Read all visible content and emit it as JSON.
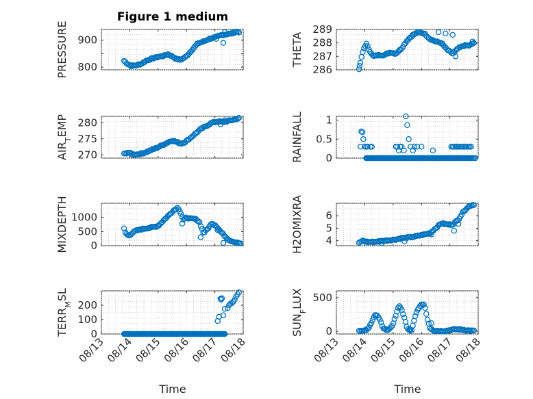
{
  "figure": {
    "title": "Figure 1 medium",
    "xlabel": "Time",
    "x_tick_labels": [
      "08/13",
      "08/14",
      "08/15",
      "08/16",
      "08/17",
      "08/18"
    ]
  },
  "chart_data": [
    {
      "type": "scatter",
      "ylabel": "PRESSURE",
      "title": "Figure 1 medium",
      "xlim": [
        0,
        5
      ],
      "ylim": [
        790,
        940
      ],
      "y_ticks": [
        800,
        850,
        900
      ],
      "y_tick_labels": [
        "800",
        "",
        "900"
      ],
      "anchors": [
        [
          0.8,
          823
        ],
        [
          0.95,
          810
        ],
        [
          1.05,
          805
        ],
        [
          1.2,
          806
        ],
        [
          1.4,
          812
        ],
        [
          1.6,
          825
        ],
        [
          1.8,
          832
        ],
        [
          2.0,
          838
        ],
        [
          2.2,
          842
        ],
        [
          2.35,
          848
        ],
        [
          2.5,
          840
        ],
        [
          2.65,
          830
        ],
        [
          2.8,
          827
        ],
        [
          3.0,
          840
        ],
        [
          3.2,
          865
        ],
        [
          3.4,
          888
        ],
        [
          3.6,
          895
        ],
        [
          3.8,
          905
        ],
        [
          4.0,
          910
        ],
        [
          4.2,
          918
        ],
        [
          4.4,
          922
        ],
        [
          4.6,
          925
        ],
        [
          4.75,
          932
        ],
        [
          4.85,
          930
        ]
      ],
      "outliers": [
        [
          4.3,
          890
        ],
        [
          4.35,
          930
        ],
        [
          4.05,
          905
        ]
      ],
      "n": 95
    },
    {
      "type": "scatter",
      "ylabel": "THETA",
      "xlim": [
        0,
        5
      ],
      "ylim": [
        286,
        289
      ],
      "y_ticks": [
        286,
        287,
        288,
        289
      ],
      "y_tick_labels": [
        "286",
        "287",
        "288",
        "289"
      ],
      "anchors": [
        [
          0.8,
          286.0
        ],
        [
          0.85,
          286.6
        ],
        [
          0.95,
          287.5
        ],
        [
          1.05,
          287.95
        ],
        [
          1.15,
          287.5
        ],
        [
          1.3,
          287.0
        ],
        [
          1.5,
          287.1
        ],
        [
          1.7,
          287.1
        ],
        [
          1.9,
          287.3
        ],
        [
          2.1,
          287.2
        ],
        [
          2.3,
          287.6
        ],
        [
          2.5,
          288.2
        ],
        [
          2.7,
          288.6
        ],
        [
          2.9,
          288.8
        ],
        [
          3.1,
          288.7
        ],
        [
          3.3,
          288.3
        ],
        [
          3.5,
          288.1
        ],
        [
          3.7,
          288.0
        ],
        [
          3.9,
          287.5
        ],
        [
          4.1,
          287.2
        ],
        [
          4.3,
          287.6
        ],
        [
          4.5,
          287.8
        ],
        [
          4.7,
          287.8
        ],
        [
          4.85,
          288.0
        ]
      ],
      "outliers": [
        [
          0.82,
          286.3
        ],
        [
          3.6,
          288.8
        ],
        [
          3.85,
          288.7
        ],
        [
          4.1,
          288.6
        ],
        [
          4.2,
          287.0
        ],
        [
          4.8,
          288.1
        ]
      ],
      "n": 95
    },
    {
      "type": "scatter",
      "ylabel": "AIR_TEMP",
      "ylabel_main": "AIR",
      "ylabel_sub": "T",
      "ylabel_rest": "EMP",
      "xlim": [
        0,
        5
      ],
      "ylim": [
        269,
        282
      ],
      "y_ticks": [
        270,
        275,
        280
      ],
      "y_tick_labels": [
        "270",
        "275",
        "280"
      ],
      "anchors": [
        [
          0.8,
          270.3
        ],
        [
          0.95,
          270.8
        ],
        [
          1.1,
          270.1
        ],
        [
          1.3,
          270.2
        ],
        [
          1.5,
          270.6
        ],
        [
          1.7,
          271.3
        ],
        [
          1.9,
          272.0
        ],
        [
          2.1,
          272.8
        ],
        [
          2.3,
          273.7
        ],
        [
          2.5,
          274.5
        ],
        [
          2.65,
          274.0
        ],
        [
          2.8,
          273.5
        ],
        [
          2.95,
          274.0
        ],
        [
          3.1,
          275.0
        ],
        [
          3.3,
          276.5
        ],
        [
          3.5,
          278.0
        ],
        [
          3.7,
          279.0
        ],
        [
          3.9,
          280.0
        ],
        [
          4.1,
          280.4
        ],
        [
          4.3,
          280.2
        ],
        [
          4.5,
          280.6
        ],
        [
          4.7,
          281.0
        ],
        [
          4.85,
          281.4
        ]
      ],
      "outliers": [
        [
          4.2,
          279.5
        ],
        [
          4.35,
          280.8
        ]
      ],
      "n": 95
    },
    {
      "type": "scatter",
      "ylabel": "RAINFALL",
      "xlim": [
        0,
        5
      ],
      "ylim": [
        0,
        1.1
      ],
      "y_ticks": [
        0,
        0.5,
        1
      ],
      "y_tick_labels": [
        "0",
        "0.5",
        "1"
      ],
      "rain_points": [
        [
          0.88,
          0.7
        ],
        [
          0.92,
          0.68
        ],
        [
          0.95,
          0.5
        ],
        [
          0.85,
          0.3
        ],
        [
          1.0,
          0.3
        ],
        [
          1.05,
          0.3
        ],
        [
          1.1,
          0.3
        ],
        [
          1.2,
          0.3
        ],
        [
          1.25,
          0.3
        ],
        [
          2.1,
          0.3
        ],
        [
          2.15,
          0.3
        ],
        [
          2.2,
          0.2
        ],
        [
          2.25,
          0.3
        ],
        [
          2.3,
          0.3
        ],
        [
          2.38,
          0.2
        ],
        [
          2.45,
          1.1
        ],
        [
          2.5,
          0.87
        ],
        [
          2.55,
          0.5
        ],
        [
          2.62,
          0.3
        ],
        [
          2.7,
          0.2
        ],
        [
          2.75,
          0.3
        ],
        [
          2.85,
          0.3
        ],
        [
          2.9,
          0.0
        ],
        [
          3.0,
          0.3
        ],
        [
          3.05,
          0.0
        ],
        [
          3.4,
          0.2
        ],
        [
          4.05,
          0.3
        ],
        [
          4.1,
          0.3
        ],
        [
          4.15,
          0.3
        ],
        [
          4.2,
          0.3
        ],
        [
          4.25,
          0.3
        ],
        [
          4.3,
          0.3
        ],
        [
          4.35,
          0.3
        ],
        [
          4.4,
          0.3
        ],
        [
          4.45,
          0.3
        ],
        [
          4.5,
          0.3
        ],
        [
          4.55,
          0.3
        ],
        [
          4.6,
          0.3
        ],
        [
          4.65,
          0.3
        ],
        [
          4.7,
          0.3
        ],
        [
          4.75,
          0.3
        ],
        [
          4.8,
          0.0
        ],
        [
          4.85,
          0.0
        ],
        [
          4.9,
          0.0
        ]
      ],
      "zero_range": [
        1.05,
        4.75
      ],
      "n": 95
    },
    {
      "type": "scatter",
      "ylabel": "MIXDEPTH",
      "xlim": [
        0,
        5
      ],
      "ylim": [
        0,
        1500
      ],
      "y_ticks": [
        0,
        500,
        1000
      ],
      "y_tick_labels": [
        "0",
        "500",
        "1000"
      ],
      "anchors": [
        [
          0.8,
          600
        ],
        [
          0.85,
          450
        ],
        [
          0.95,
          350
        ],
        [
          1.05,
          420
        ],
        [
          1.2,
          520
        ],
        [
          1.4,
          580
        ],
        [
          1.6,
          620
        ],
        [
          1.8,
          650
        ],
        [
          2.0,
          700
        ],
        [
          2.2,
          900
        ],
        [
          2.4,
          1100
        ],
        [
          2.55,
          1250
        ],
        [
          2.7,
          1350
        ],
        [
          2.8,
          1150
        ],
        [
          2.9,
          900
        ],
        [
          3.0,
          1000
        ],
        [
          3.15,
          950
        ],
        [
          3.3,
          950
        ],
        [
          3.45,
          850
        ],
        [
          3.6,
          450
        ],
        [
          3.75,
          600
        ],
        [
          3.9,
          800
        ],
        [
          4.05,
          700
        ],
        [
          4.2,
          500
        ],
        [
          4.35,
          350
        ],
        [
          4.5,
          200
        ],
        [
          4.65,
          150
        ],
        [
          4.8,
          100
        ],
        [
          4.9,
          80
        ]
      ],
      "outliers": [
        [
          2.85,
          780
        ],
        [
          3.5,
          300
        ],
        [
          4.1,
          550
        ],
        [
          4.3,
          100
        ]
      ],
      "n": 95
    },
    {
      "type": "scatter",
      "ylabel": "H2OMIXRA",
      "xlim": [
        0,
        5
      ],
      "ylim": [
        3.6,
        7
      ],
      "y_ticks": [
        4,
        5,
        6
      ],
      "y_tick_labels": [
        "4",
        "5",
        "6"
      ],
      "anchors": [
        [
          0.8,
          3.8
        ],
        [
          0.9,
          4.0
        ],
        [
          1.1,
          3.9
        ],
        [
          1.3,
          3.9
        ],
        [
          1.5,
          3.95
        ],
        [
          1.7,
          4.0
        ],
        [
          1.9,
          4.05
        ],
        [
          2.1,
          4.1
        ],
        [
          2.3,
          4.2
        ],
        [
          2.5,
          4.25
        ],
        [
          2.7,
          4.3
        ],
        [
          2.9,
          4.4
        ],
        [
          3.1,
          4.5
        ],
        [
          3.3,
          4.6
        ],
        [
          3.5,
          5.0
        ],
        [
          3.7,
          5.4
        ],
        [
          3.9,
          5.3
        ],
        [
          4.1,
          5.3
        ],
        [
          4.3,
          5.7
        ],
        [
          4.5,
          6.4
        ],
        [
          4.7,
          6.8
        ],
        [
          4.85,
          6.9
        ]
      ],
      "outliers": [
        [
          1.6,
          3.8
        ],
        [
          2.4,
          3.95
        ],
        [
          3.35,
          4.5
        ],
        [
          4.15,
          4.8
        ],
        [
          4.3,
          5.35
        ]
      ],
      "n": 95
    },
    {
      "type": "scatter",
      "ylabel": "TERR_MSL",
      "ylabel_main": "TERR",
      "ylabel_sub": "M",
      "ylabel_rest": "SL",
      "xlim": [
        0,
        5
      ],
      "ylim": [
        0,
        300
      ],
      "y_ticks": [
        0,
        100,
        200
      ],
      "y_tick_labels": [
        "0",
        "100",
        "200"
      ],
      "zero_range": [
        0.8,
        4.35
      ],
      "rise_points": [
        [
          4.1,
          90
        ],
        [
          4.15,
          120
        ],
        [
          4.2,
          245
        ],
        [
          4.22,
          240
        ],
        [
          4.25,
          248
        ],
        [
          4.3,
          130
        ],
        [
          4.35,
          175
        ],
        [
          4.45,
          180
        ],
        [
          4.5,
          200
        ],
        [
          4.55,
          210
        ],
        [
          4.6,
          215
        ],
        [
          4.65,
          225
        ],
        [
          4.7,
          240
        ],
        [
          4.75,
          260
        ],
        [
          4.8,
          275
        ],
        [
          4.85,
          290
        ]
      ],
      "n": 95
    },
    {
      "type": "scatter",
      "ylabel": "SUN_FLUX",
      "ylabel_main": "SUN",
      "ylabel_sub": "F",
      "ylabel_rest": "LUX",
      "xlim": [
        0,
        5
      ],
      "ylim": [
        -40,
        600
      ],
      "y_ticks": [
        0,
        500
      ],
      "y_tick_labels": [
        "0",
        "500"
      ],
      "anchors": [
        [
          0.8,
          10
        ],
        [
          1.0,
          5
        ],
        [
          1.15,
          50
        ],
        [
          1.25,
          150
        ],
        [
          1.35,
          240
        ],
        [
          1.45,
          230
        ],
        [
          1.55,
          150
        ],
        [
          1.65,
          50
        ],
        [
          1.8,
          10
        ],
        [
          2.0,
          100
        ],
        [
          2.1,
          250
        ],
        [
          2.2,
          380
        ],
        [
          2.3,
          320
        ],
        [
          2.4,
          200
        ],
        [
          2.5,
          30
        ],
        [
          2.65,
          5
        ],
        [
          2.8,
          250
        ],
        [
          2.9,
          350
        ],
        [
          3.0,
          390
        ],
        [
          3.1,
          400
        ],
        [
          3.2,
          200
        ],
        [
          3.3,
          50
        ],
        [
          3.45,
          10
        ],
        [
          3.7,
          5
        ],
        [
          3.9,
          10
        ],
        [
          4.1,
          25
        ],
        [
          4.3,
          30
        ],
        [
          4.5,
          20
        ],
        [
          4.7,
          10
        ],
        [
          4.85,
          5
        ]
      ],
      "outliers": [
        [
          2.6,
          30
        ],
        [
          3.35,
          120
        ]
      ],
      "n": 95
    }
  ]
}
